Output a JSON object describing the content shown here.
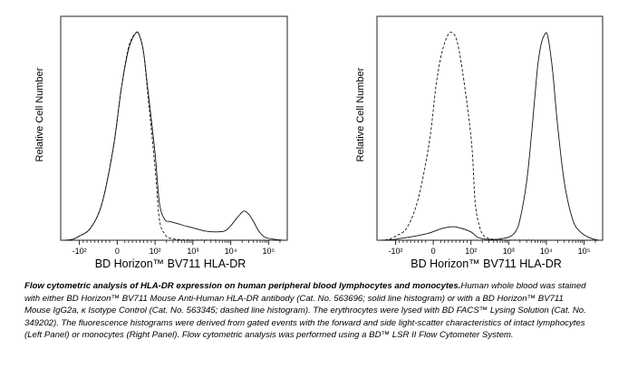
{
  "chart_data": [
    {
      "type": "line",
      "panel": "Left Panel",
      "xlabel": "BD Horizon™ BV711 HLA-DR",
      "ylabel": "Relative Cell Number",
      "x_scale": "biexponential",
      "x_ticks": [
        "-10²",
        "0",
        "10²",
        "10³",
        "10⁴",
        "10⁵"
      ],
      "x_tick_values": [
        -100,
        0,
        100,
        1000,
        10000,
        100000
      ],
      "y_ticks": [],
      "series": [
        {
          "style": "solid",
          "x": [
            -250,
            -150,
            -100,
            -70,
            -40,
            -10,
            10,
            30,
            50,
            60,
            70,
            80,
            100,
            130,
            180,
            250,
            400,
            600,
            1000,
            2000,
            4000,
            7000,
            10000,
            15000,
            22000,
            30000,
            40000,
            55000,
            80000,
            150000,
            250000
          ],
          "y": [
            0,
            0.005,
            0.02,
            0.06,
            0.18,
            0.45,
            0.72,
            0.92,
            1.0,
            0.98,
            0.9,
            0.74,
            0.42,
            0.18,
            0.1,
            0.09,
            0.08,
            0.07,
            0.06,
            0.045,
            0.04,
            0.045,
            0.07,
            0.11,
            0.14,
            0.125,
            0.09,
            0.045,
            0.015,
            0.004,
            0
          ]
        },
        {
          "style": "dashed",
          "x": [
            -250,
            -150,
            -100,
            -70,
            -40,
            -10,
            10,
            30,
            50,
            60,
            70,
            80,
            100,
            130,
            180,
            250,
            400,
            1000,
            250000
          ],
          "y": [
            0,
            0.005,
            0.02,
            0.06,
            0.18,
            0.45,
            0.72,
            0.93,
            1.0,
            0.98,
            0.9,
            0.72,
            0.35,
            0.1,
            0.03,
            0.01,
            0.004,
            0.001,
            0
          ]
        }
      ]
    },
    {
      "type": "line",
      "panel": "Right Panel",
      "xlabel": "BD Horizon™ BV711 HLA-DR",
      "ylabel": "Relative Cell Number",
      "x_scale": "biexponential",
      "x_ticks": [
        "-10²",
        "0",
        "10²",
        "10³",
        "10⁴",
        "10⁵"
      ],
      "x_tick_values": [
        -100,
        0,
        100,
        1000,
        10000,
        100000
      ],
      "y_ticks": [],
      "series": [
        {
          "style": "solid",
          "x": [
            -250,
            -100,
            -20,
            20,
            50,
            70,
            100,
            150,
            250,
            500,
            1000,
            1500,
            2000,
            3000,
            4000,
            5000,
            6000,
            7000,
            8000,
            9000,
            10000,
            11000,
            12500,
            15000,
            20000,
            30000,
            50000,
            80000,
            150000,
            250000
          ],
          "y": [
            0,
            0.005,
            0.03,
            0.055,
            0.065,
            0.06,
            0.04,
            0.015,
            0.005,
            0.005,
            0.015,
            0.04,
            0.1,
            0.28,
            0.5,
            0.7,
            0.85,
            0.93,
            0.97,
            0.99,
            1.0,
            0.98,
            0.92,
            0.8,
            0.55,
            0.28,
            0.1,
            0.04,
            0.01,
            0
          ]
        },
        {
          "style": "dashed",
          "x": [
            -250,
            -150,
            -100,
            -70,
            -40,
            -10,
            10,
            30,
            50,
            70,
            100,
            130,
            180,
            250,
            400,
            1000,
            250000
          ],
          "y": [
            0,
            0.005,
            0.02,
            0.06,
            0.2,
            0.48,
            0.78,
            0.95,
            1.0,
            0.9,
            0.5,
            0.18,
            0.05,
            0.015,
            0.004,
            0.001,
            0
          ]
        }
      ]
    }
  ],
  "caption": {
    "bold": "Flow cytometric analysis of HLA-DR expression on human peripheral blood lymphocytes and monocytes.",
    "text": "Human whole blood was stained with either BD Horizon™ BV711 Mouse Anti-Human HLA-DR antibody (Cat. No. 563696; solid line histogram) or with a BD Horizon™ BV711 Mouse IgG2a, κ Isotype Control (Cat. No. 563345; dashed line histogram). The erythrocytes were lysed with BD FACS™ Lysing Solution (Cat. No. 349202). The fluorescence histograms were derived from gated events with the forward and side light-scatter characteristics of intact lymphocytes (Left Panel) or monocytes (Right Panel). Flow cytometric analysis was performed using a BD™ LSR II Flow Cytometer System."
  }
}
